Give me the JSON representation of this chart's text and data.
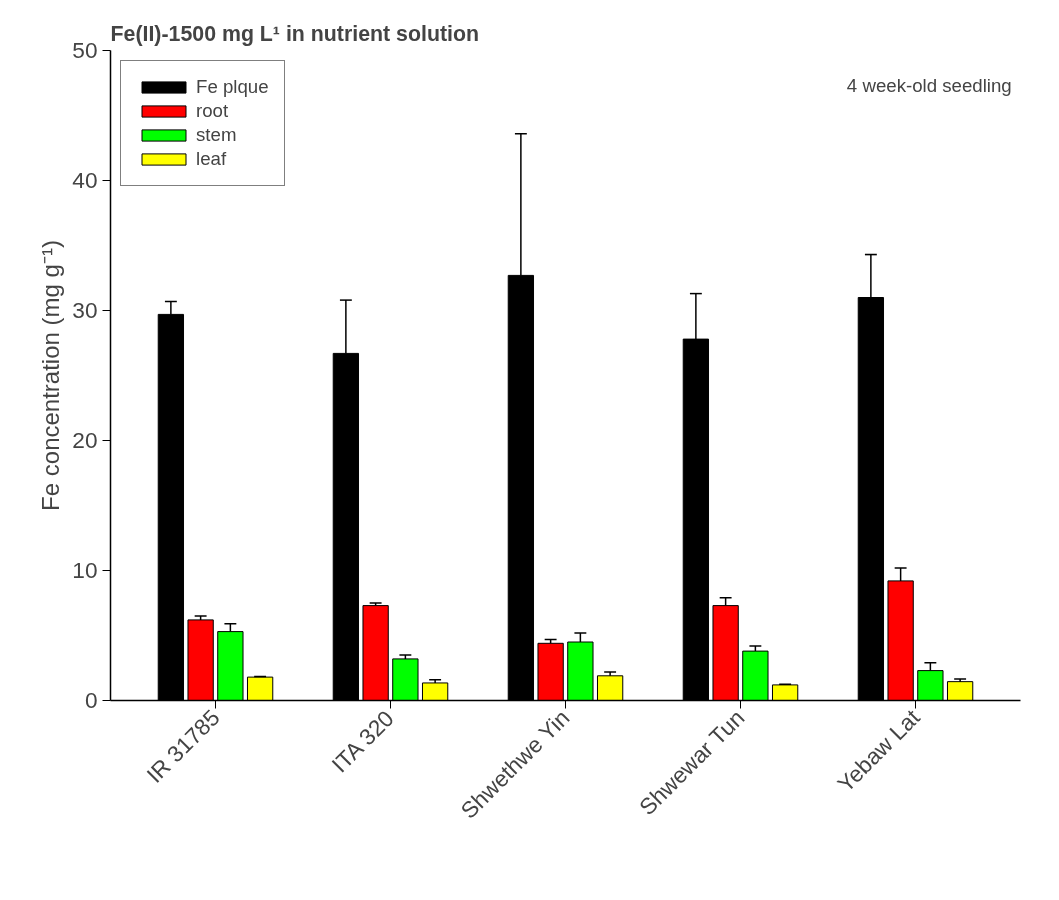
{
  "chart_data": {
    "type": "bar",
    "title": "Fe(II)-1500 mg L¹ in nutrient solution",
    "ylabel": "Fe concentration (mg g⁻¹)",
    "annotations": [
      "4 week-old seedling"
    ],
    "categories": [
      "IR 31785",
      "ITA 320",
      "Shwethwe Yin",
      "Shwewar Tun",
      "Yebaw Lat"
    ],
    "series": [
      {
        "name": "Fe plque",
        "color": "#000000",
        "values": [
          29.7,
          26.7,
          32.7,
          27.8,
          31.0
        ],
        "errors": [
          [
            29.7,
            30.7
          ],
          [
            26.7,
            30.8
          ],
          [
            32.7,
            43.6
          ],
          [
            27.8,
            31.3
          ],
          [
            31.0,
            34.3
          ]
        ]
      },
      {
        "name": "root",
        "color": "#ff0000",
        "values": [
          6.2,
          7.3,
          4.4,
          7.3,
          9.2
        ],
        "errors": [
          [
            6.2,
            6.5
          ],
          [
            7.3,
            7.5
          ],
          [
            4.4,
            4.7
          ],
          [
            7.3,
            7.9
          ],
          [
            9.2,
            10.2
          ]
        ]
      },
      {
        "name": "stem",
        "color": "#00ff00",
        "values": [
          5.3,
          3.2,
          4.5,
          3.8,
          2.3
        ],
        "errors": [
          [
            5.3,
            5.9
          ],
          [
            3.2,
            3.5
          ],
          [
            4.5,
            5.2
          ],
          [
            3.8,
            4.2
          ],
          [
            2.3,
            2.9
          ]
        ]
      },
      {
        "name": "leaf",
        "color": "#ffff00",
        "values": [
          1.8,
          1.35,
          1.9,
          1.2,
          1.45
        ],
        "errors": [
          [
            1.8,
            1.85
          ],
          [
            1.35,
            1.6
          ],
          [
            1.9,
            2.2
          ],
          [
            1.2,
            1.25
          ],
          [
            1.45,
            1.65
          ]
        ]
      }
    ],
    "ylim": [
      0,
      50
    ],
    "yticks": [
      0,
      10,
      20,
      30,
      40,
      50
    ],
    "grid": false,
    "legend": "top left"
  }
}
